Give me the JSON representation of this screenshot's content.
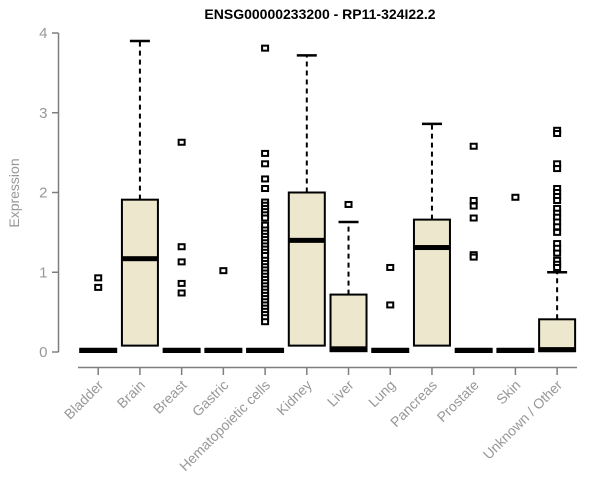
{
  "page": {
    "background": "#ffffff"
  },
  "chart_data": {
    "type": "boxplot",
    "title": "ENSG00000233200 - RP11-324I22.2",
    "ylabel": "Expression",
    "xlabel": "",
    "ylim": [
      0,
      4
    ],
    "yticks": [
      0,
      1,
      2,
      3,
      4
    ],
    "grid": false,
    "legend": "none",
    "colors": {
      "box_fill": "#EDE7CE",
      "box_border": "#000000",
      "median": "#000000",
      "axis": "#7f7f7f",
      "tick_label": "#989898",
      "title": "#000000"
    },
    "categories": [
      "Bladder",
      "Brain",
      "Breast",
      "Gastric",
      "Hematopoietic cells",
      "Kidney",
      "Liver",
      "Lung",
      "Pancreas",
      "Prostate",
      "Skin",
      "Unknown / Other"
    ],
    "series": [
      {
        "name": "Bladder",
        "q1": 0,
        "median": 0.02,
        "q3": 0.04,
        "whisker_low": null,
        "whisker_high": null,
        "outliers": [
          0.93,
          0.81
        ]
      },
      {
        "name": "Brain",
        "q1": 0.08,
        "median": 1.17,
        "q3": 1.91,
        "whisker_low": null,
        "whisker_high": 3.9,
        "outliers": []
      },
      {
        "name": "Breast",
        "q1": 0,
        "median": 0.02,
        "q3": 0.04,
        "whisker_low": null,
        "whisker_high": null,
        "outliers": [
          2.63,
          1.32,
          1.13,
          0.86,
          0.74
        ]
      },
      {
        "name": "Gastric",
        "q1": 0,
        "median": 0.02,
        "q3": 0.04,
        "whisker_low": null,
        "whisker_high": null,
        "outliers": [
          1.02
        ]
      },
      {
        "name": "Hematopoietic cells",
        "q1": 0,
        "median": 0.02,
        "q3": 0.04,
        "whisker_low": null,
        "whisker_high": null,
        "outliers": [
          3.81,
          2.49,
          2.36,
          2.17,
          2.05,
          1.88,
          1.84,
          1.8,
          1.76,
          1.72,
          1.68,
          1.59,
          1.53,
          1.49,
          1.45,
          1.41,
          1.37,
          1.33,
          1.29,
          1.25,
          1.21,
          1.15,
          1.11,
          1.07,
          1.03,
          0.99,
          0.95,
          0.91,
          0.87,
          0.83,
          0.79,
          0.75,
          0.71,
          0.67,
          0.63,
          0.59,
          0.55,
          0.51,
          0.47,
          0.43,
          0.38
        ]
      },
      {
        "name": "Kidney",
        "q1": 0.08,
        "median": 1.4,
        "q3": 2.0,
        "whisker_low": null,
        "whisker_high": 3.72,
        "outliers": []
      },
      {
        "name": "Liver",
        "q1": 0.01,
        "median": 0.04,
        "q3": 0.72,
        "whisker_low": null,
        "whisker_high": 1.63,
        "outliers": [
          1.85
        ]
      },
      {
        "name": "Lung",
        "q1": 0,
        "median": 0.02,
        "q3": 0.04,
        "whisker_low": null,
        "whisker_high": null,
        "outliers": [
          1.06,
          0.59
        ]
      },
      {
        "name": "Pancreas",
        "q1": 0.08,
        "median": 1.31,
        "q3": 1.66,
        "whisker_low": null,
        "whisker_high": 2.86,
        "outliers": []
      },
      {
        "name": "Prostate",
        "q1": 0,
        "median": 0.02,
        "q3": 0.04,
        "whisker_low": null,
        "whisker_high": null,
        "outliers": [
          2.58,
          1.9,
          1.83,
          1.68,
          1.22,
          1.19
        ]
      },
      {
        "name": "Skin",
        "q1": 0,
        "median": 0.02,
        "q3": 0.04,
        "whisker_low": null,
        "whisker_high": null,
        "outliers": [
          1.94
        ]
      },
      {
        "name": "Unknown / Other",
        "q1": 0.01,
        "median": 0.03,
        "q3": 0.41,
        "whisker_low": null,
        "whisker_high": 1.0,
        "outliers": [
          2.78,
          2.74,
          2.36,
          2.3,
          2.05,
          2.0,
          1.95,
          1.9,
          1.8,
          1.74,
          1.69,
          1.63,
          1.57,
          1.5,
          1.36,
          1.3,
          1.24,
          1.15,
          1.1,
          1.06
        ]
      }
    ]
  }
}
